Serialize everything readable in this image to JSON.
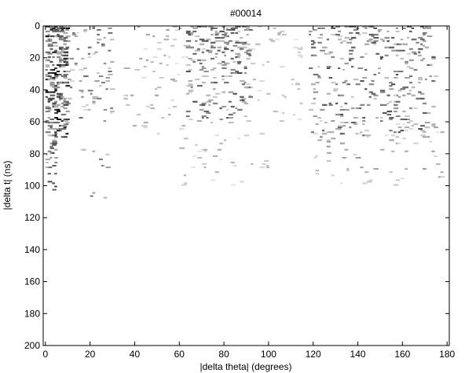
{
  "chart_data": {
    "type": "heatmap",
    "title": "#00014",
    "xlabel": "|delta theta| (degrees)",
    "ylabel": "|delta t| (ns)",
    "xlim": [
      -1,
      181
    ],
    "ylim": [
      200,
      0
    ],
    "y_reversed": true,
    "colormap": "grayscale (white = 0, black = max)",
    "xticks": [
      0,
      20,
      40,
      60,
      80,
      100,
      120,
      140,
      160,
      180
    ],
    "yticks": [
      0,
      20,
      40,
      60,
      80,
      100,
      120,
      140,
      160,
      180,
      200
    ],
    "bin_width_deg": 1,
    "bin_height_ns": 1,
    "point_seed": 14,
    "clusters": [
      {
        "x_range": [
          0,
          10
        ],
        "y_range": [
          0,
          70
        ],
        "count": 240,
        "intensity": 0.72
      },
      {
        "x_range": [
          0,
          5
        ],
        "y_range": [
          60,
          112
        ],
        "count": 35,
        "intensity": 0.55
      },
      {
        "x_range": [
          5,
          30
        ],
        "y_range": [
          0,
          65
        ],
        "count": 90,
        "intensity": 0.45
      },
      {
        "x_range": [
          12,
          28
        ],
        "y_range": [
          75,
          110
        ],
        "count": 10,
        "intensity": 0.55
      },
      {
        "x_range": [
          35,
          65
        ],
        "y_range": [
          0,
          70
        ],
        "count": 70,
        "intensity": 0.3
      },
      {
        "x_range": [
          63,
          92
        ],
        "y_range": [
          0,
          60
        ],
        "count": 220,
        "intensity": 0.55
      },
      {
        "x_range": [
          60,
          100
        ],
        "y_range": [
          60,
          100
        ],
        "count": 40,
        "intensity": 0.25
      },
      {
        "x_range": [
          90,
          115
        ],
        "y_range": [
          0,
          60
        ],
        "count": 45,
        "intensity": 0.22
      },
      {
        "x_range": [
          118,
          175
        ],
        "y_range": [
          0,
          70
        ],
        "count": 320,
        "intensity": 0.55
      },
      {
        "x_range": [
          120,
          178
        ],
        "y_range": [
          60,
          100
        ],
        "count": 80,
        "intensity": 0.3
      }
    ]
  }
}
